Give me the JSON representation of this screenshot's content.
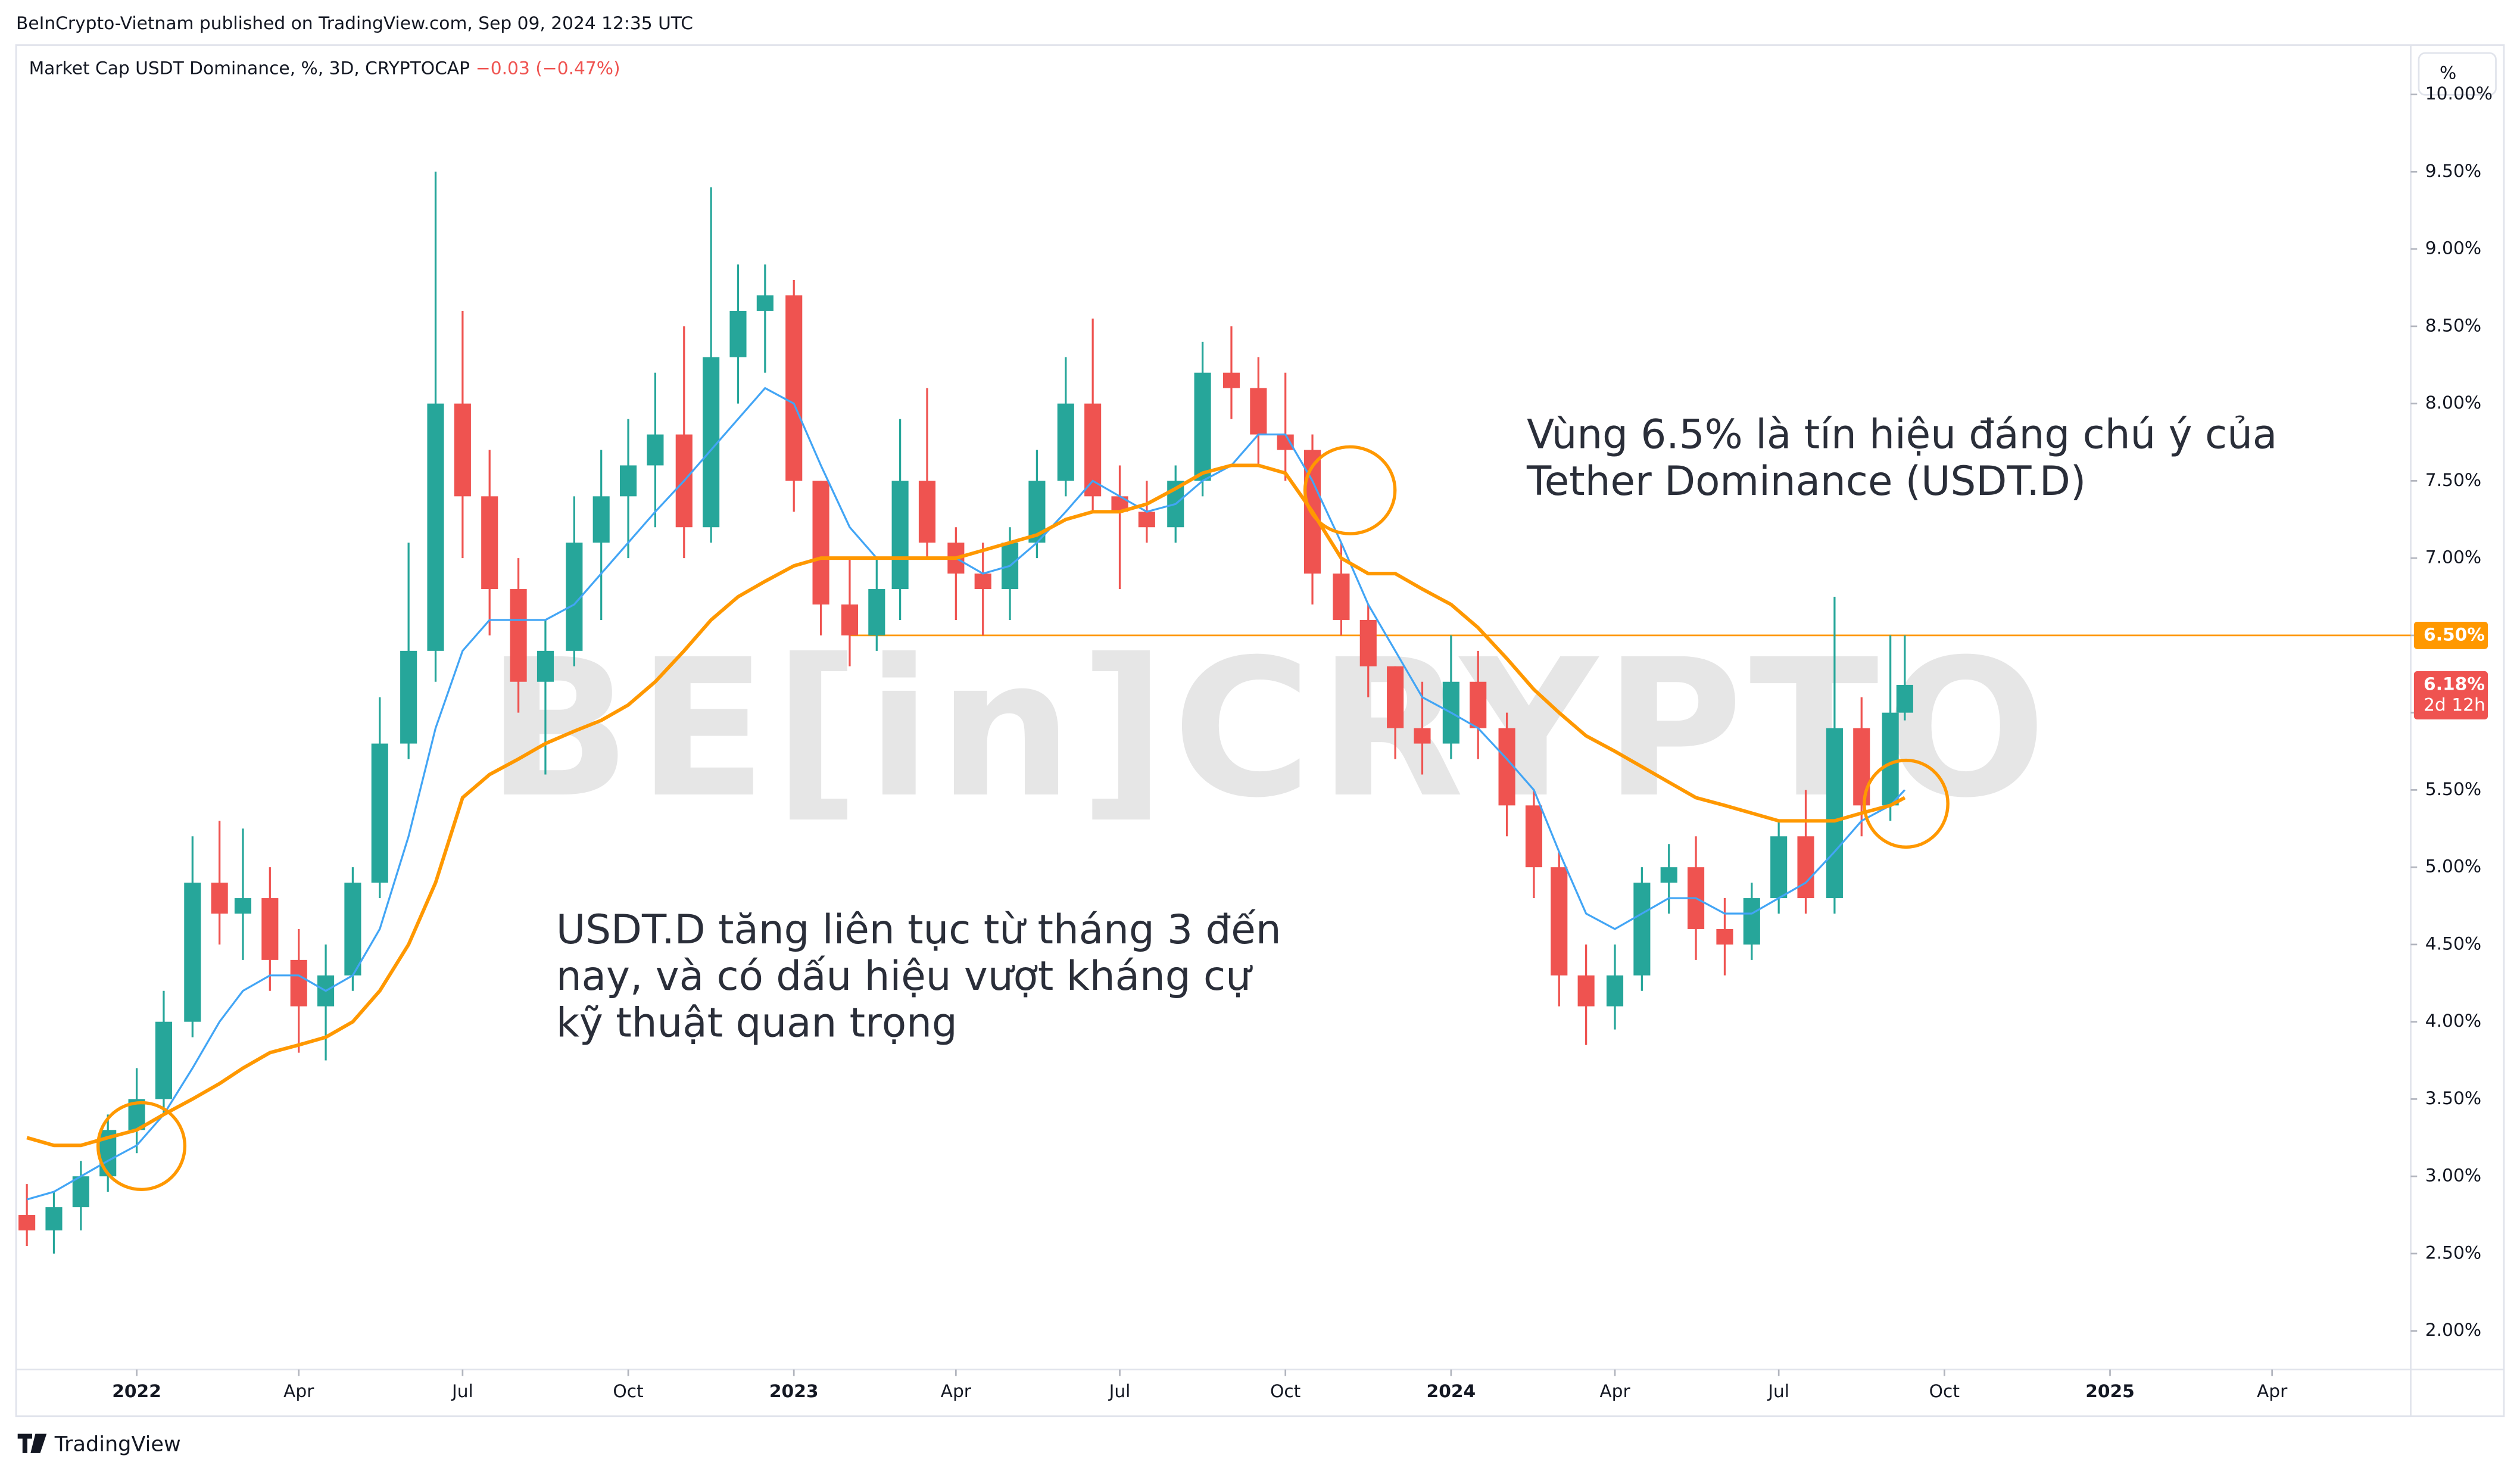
{
  "header": {
    "published": "BeInCrypto-Vietnam published on TradingView.com, Sep 09, 2024 12:35 UTC",
    "symbol": "Market Cap USDT Dominance, %, 3D, CRYPTOCAP",
    "change": "−0.03 (−0.47%)",
    "scale_button": "%"
  },
  "footer": {
    "brand": "TradingView"
  },
  "watermark": "BE[in]CRYPTO",
  "chart_data": {
    "type": "candlestick",
    "x": [
      "2021-11-01",
      "2021-11-16",
      "2021-12-01",
      "2021-12-16",
      "2022-01-01",
      "2022-01-16",
      "2022-02-01",
      "2022-02-16",
      "2022-03-01",
      "2022-03-16",
      "2022-04-01",
      "2022-04-16",
      "2022-05-01",
      "2022-05-16",
      "2022-06-01",
      "2022-06-16",
      "2022-07-01",
      "2022-07-16",
      "2022-08-01",
      "2022-08-16",
      "2022-09-01",
      "2022-09-16",
      "2022-10-01",
      "2022-10-16",
      "2022-11-01",
      "2022-11-16",
      "2022-12-01",
      "2022-12-16",
      "2023-01-01",
      "2023-01-16",
      "2023-02-01",
      "2023-02-16",
      "2023-03-01",
      "2023-03-16",
      "2023-04-01",
      "2023-04-16",
      "2023-05-01",
      "2023-05-16",
      "2023-06-01",
      "2023-06-16",
      "2023-07-01",
      "2023-07-16",
      "2023-08-01",
      "2023-08-16",
      "2023-09-01",
      "2023-09-16",
      "2023-10-01",
      "2023-10-16",
      "2023-11-01",
      "2023-11-16",
      "2023-12-01",
      "2023-12-16",
      "2024-01-01",
      "2024-01-16",
      "2024-02-01",
      "2024-02-16",
      "2024-03-01",
      "2024-03-16",
      "2024-04-01",
      "2024-04-16",
      "2024-05-01",
      "2024-05-16",
      "2024-06-01",
      "2024-06-16",
      "2024-07-01",
      "2024-07-16",
      "2024-08-01",
      "2024-08-16",
      "2024-09-01",
      "2024-09-09"
    ],
    "open": [
      2.75,
      2.65,
      2.8,
      3.0,
      3.3,
      3.5,
      4.0,
      4.9,
      4.7,
      4.8,
      4.4,
      4.1,
      4.3,
      4.9,
      5.8,
      6.4,
      8.0,
      7.4,
      6.8,
      6.2,
      6.4,
      7.1,
      7.4,
      7.6,
      7.8,
      7.2,
      8.3,
      8.6,
      8.7,
      7.5,
      6.7,
      6.5,
      6.8,
      7.5,
      7.1,
      6.9,
      6.8,
      7.1,
      7.5,
      8.0,
      7.4,
      7.3,
      7.2,
      7.5,
      8.2,
      8.1,
      7.8,
      7.7,
      6.9,
      6.6,
      6.3,
      5.9,
      5.8,
      6.2,
      5.9,
      5.4,
      5.0,
      4.3,
      4.1,
      4.3,
      4.9,
      5.0,
      4.6,
      4.5,
      4.8,
      5.2,
      4.8,
      5.9,
      5.4,
      6.0
    ],
    "high": [
      2.95,
      2.9,
      3.1,
      3.4,
      3.7,
      4.2,
      5.2,
      5.3,
      5.25,
      5.0,
      4.6,
      4.5,
      5.0,
      6.1,
      7.1,
      9.5,
      8.6,
      7.7,
      7.0,
      6.6,
      7.4,
      7.7,
      7.9,
      8.2,
      8.5,
      9.4,
      8.9,
      8.9,
      8.8,
      7.5,
      7.0,
      7.0,
      7.9,
      8.1,
      7.2,
      7.1,
      7.2,
      7.7,
      8.3,
      8.55,
      7.6,
      7.5,
      7.6,
      8.4,
      8.5,
      8.3,
      8.2,
      7.8,
      7.1,
      6.7,
      6.3,
      6.2,
      6.5,
      6.4,
      6.0,
      5.5,
      5.1,
      4.5,
      4.5,
      5.0,
      5.15,
      5.2,
      4.8,
      4.9,
      5.3,
      5.5,
      6.75,
      6.1,
      6.5,
      6.5
    ],
    "low": [
      2.55,
      2.5,
      2.65,
      2.9,
      3.15,
      3.4,
      3.9,
      4.5,
      4.4,
      4.2,
      3.8,
      3.75,
      4.2,
      4.8,
      5.7,
      6.2,
      7.0,
      6.5,
      6.0,
      5.6,
      6.3,
      6.6,
      7.0,
      7.2,
      7.0,
      7.1,
      8.0,
      8.2,
      7.3,
      6.5,
      6.3,
      6.4,
      6.6,
      7.0,
      6.6,
      6.5,
      6.6,
      7.0,
      7.4,
      7.3,
      6.8,
      7.1,
      7.1,
      7.4,
      7.9,
      7.6,
      7.5,
      6.7,
      6.5,
      6.1,
      5.7,
      5.6,
      5.7,
      5.7,
      5.2,
      4.8,
      4.1,
      3.85,
      3.95,
      4.2,
      4.7,
      4.4,
      4.3,
      4.4,
      4.7,
      4.7,
      4.7,
      5.2,
      5.3,
      5.95
    ],
    "close": [
      2.65,
      2.8,
      3.0,
      3.3,
      3.5,
      4.0,
      4.9,
      4.7,
      4.8,
      4.4,
      4.1,
      4.3,
      4.9,
      5.8,
      6.4,
      8.0,
      7.4,
      6.8,
      6.2,
      6.4,
      7.1,
      7.4,
      7.6,
      7.8,
      7.2,
      8.3,
      8.6,
      8.7,
      7.5,
      6.7,
      6.5,
      6.8,
      7.5,
      7.1,
      6.9,
      6.8,
      7.1,
      7.5,
      8.0,
      7.4,
      7.3,
      7.2,
      7.5,
      8.2,
      8.1,
      7.8,
      7.7,
      6.9,
      6.6,
      6.3,
      5.9,
      5.8,
      6.2,
      5.9,
      5.4,
      5.0,
      4.3,
      4.1,
      4.3,
      4.9,
      5.0,
      4.6,
      4.5,
      4.8,
      5.2,
      4.8,
      5.9,
      5.4,
      6.0,
      6.18
    ],
    "up_color": "#26a69a",
    "down_color": "#ef5350",
    "moving_averages": [
      {
        "color": "#42a5f5",
        "values": [
          2.85,
          2.9,
          3.0,
          3.1,
          3.2,
          3.4,
          3.7,
          4.0,
          4.2,
          4.3,
          4.3,
          4.2,
          4.3,
          4.6,
          5.2,
          5.9,
          6.4,
          6.6,
          6.6,
          6.6,
          6.7,
          6.9,
          7.1,
          7.3,
          7.5,
          7.7,
          7.9,
          8.1,
          8.0,
          7.6,
          7.2,
          7.0,
          7.0,
          7.0,
          7.0,
          6.9,
          6.95,
          7.1,
          7.3,
          7.5,
          7.4,
          7.3,
          7.35,
          7.5,
          7.6,
          7.8,
          7.8,
          7.5,
          7.1,
          6.7,
          6.4,
          6.1,
          6.0,
          5.9,
          5.7,
          5.5,
          5.1,
          4.7,
          4.6,
          4.7,
          4.8,
          4.8,
          4.7,
          4.7,
          4.8,
          4.9,
          5.1,
          5.3,
          5.4,
          5.5
        ]
      },
      {
        "color": "#ff9800",
        "values": [
          3.25,
          3.2,
          3.2,
          3.25,
          3.3,
          3.4,
          3.5,
          3.6,
          3.7,
          3.8,
          3.85,
          3.9,
          4.0,
          4.2,
          4.5,
          4.9,
          5.45,
          5.6,
          5.7,
          5.8,
          5.88,
          5.95,
          6.05,
          6.2,
          6.4,
          6.6,
          6.75,
          6.85,
          6.95,
          7.0,
          7.0,
          7.0,
          7.0,
          7.0,
          7.0,
          7.05,
          7.1,
          7.15,
          7.25,
          7.3,
          7.3,
          7.35,
          7.45,
          7.55,
          7.6,
          7.6,
          7.55,
          7.3,
          7.0,
          6.9,
          6.9,
          6.8,
          6.7,
          6.55,
          6.35,
          6.15,
          6.0,
          5.85,
          5.75,
          5.65,
          5.55,
          5.45,
          5.4,
          5.35,
          5.3,
          5.3,
          5.3,
          5.35,
          5.4,
          5.45
        ]
      }
    ],
    "level": {
      "value": 6.5,
      "label": "6.50%",
      "color": "#ff9800",
      "start": "2023-02-01"
    },
    "last_price": {
      "value": 6.18,
      "label": "6.18%",
      "countdown": "2d 12h",
      "color": "#ef5350"
    },
    "xlim": [
      "2021-10-26",
      "2025-06-17"
    ],
    "xticks": [
      {
        "value": "2022-01-01",
        "label": "2022"
      },
      {
        "value": "2022-04-01",
        "label": "Apr"
      },
      {
        "value": "2022-07-01",
        "label": "Jul"
      },
      {
        "value": "2022-10-01",
        "label": "Oct"
      },
      {
        "value": "2023-01-01",
        "label": "2023"
      },
      {
        "value": "2023-04-01",
        "label": "Apr"
      },
      {
        "value": "2023-07-01",
        "label": "Jul"
      },
      {
        "value": "2023-10-01",
        "label": "Oct"
      },
      {
        "value": "2024-01-01",
        "label": "2024"
      },
      {
        "value": "2024-04-01",
        "label": "Apr"
      },
      {
        "value": "2024-07-01",
        "label": "Jul"
      },
      {
        "value": "2024-10-01",
        "label": "Oct"
      },
      {
        "value": "2025-01-01",
        "label": "2025"
      },
      {
        "value": "2025-04-01",
        "label": "Apr"
      }
    ],
    "ylim": [
      1.75,
      10.32
    ],
    "yticks": [
      {
        "value": 2,
        "label": "2.00%"
      },
      {
        "value": 2.5,
        "label": "2.50%"
      },
      {
        "value": 3,
        "label": "3.00%"
      },
      {
        "value": 3.5,
        "label": "3.50%"
      },
      {
        "value": 4,
        "label": "4.00%"
      },
      {
        "value": 4.5,
        "label": "4.50%"
      },
      {
        "value": 5,
        "label": "5.00%"
      },
      {
        "value": 5.5,
        "label": "5.50%"
      },
      {
        "value": 6,
        "label": "6.00%"
      },
      {
        "value": 6.5,
        "label": "6.50%"
      },
      {
        "value": 7,
        "label": "7.00%"
      },
      {
        "value": 7.5,
        "label": "7.50%"
      },
      {
        "value": 8,
        "label": "8.00%"
      },
      {
        "value": 8.5,
        "label": "8.50%"
      },
      {
        "value": 9,
        "label": "9.00%"
      },
      {
        "value": 9.5,
        "label": "9.50%"
      },
      {
        "value": 10,
        "label": "10.00%"
      }
    ],
    "annotations": [
      {
        "lines": [
          "Vùng 6.5% là tín hiệu đáng chú ý của",
          "Tether Dominance (USDT.D)"
        ]
      },
      {
        "lines": [
          "USDT.D tăng liên tục từ tháng 3 đến",
          "nay, và có dấu hiệu vượt kháng cự",
          "kỹ thuật quan trọng"
        ]
      }
    ]
  }
}
